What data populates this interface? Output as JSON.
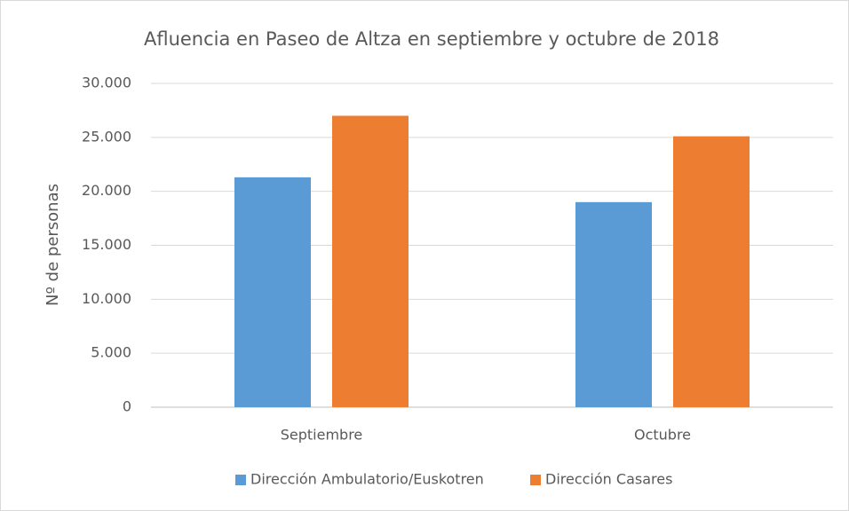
{
  "chart_data": {
    "type": "bar",
    "title": "Afluencia en Paseo de Altza en septiembre y octubre de 2018",
    "y_label": "Nº de personas",
    "categories": [
      "Septiembre",
      "Octubre"
    ],
    "series": [
      {
        "name": "Dirección Ambulatorio/Euskotren",
        "color": "#5b9bd5",
        "values": [
          21300,
          19000
        ]
      },
      {
        "name": "Dirección Casares",
        "color": "#ed7d31",
        "values": [
          27000,
          25100
        ]
      }
    ],
    "ylim": [
      0,
      30000
    ],
    "yticks": [
      0,
      {
        "value": 5000,
        "label": "5.000"
      },
      {
        "value": 10000,
        "label": "10.000"
      },
      {
        "value": 15000,
        "label": "15.000"
      },
      {
        "value": 20000,
        "label": "20.000"
      },
      {
        "value": 25000,
        "label": "25.000"
      },
      {
        "value": 30000,
        "label": "30.000"
      }
    ],
    "grid": true,
    "legend": "bottom"
  }
}
